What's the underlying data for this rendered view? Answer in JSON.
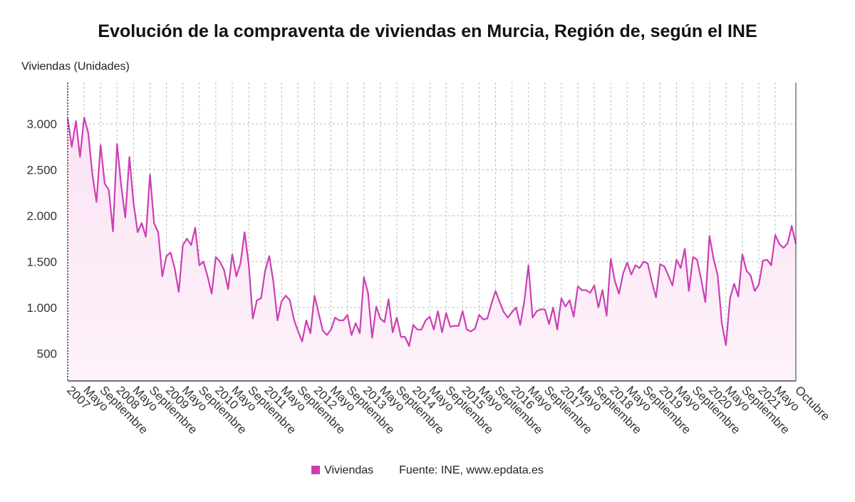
{
  "chart_data": {
    "type": "area",
    "title": "Evolución de la compraventa de viviendas en Murcia, Región de, según el INE",
    "ylabel": "Viviendas (Unidades)",
    "xlabel": "",
    "ylim": [
      200,
      3450
    ],
    "yticks": [
      500,
      1000,
      1500,
      2000,
      2500,
      3000
    ],
    "ytick_labels": [
      "500",
      "1.000",
      "1.500",
      "2.000",
      "2.500",
      "3.000"
    ],
    "grid": true,
    "legend_position": "bottom",
    "source": "Fuente: INE, www.epdata.es",
    "xtick_labels": [
      {
        "i": 0,
        "label": "2007"
      },
      {
        "i": 4,
        "label": "Mayo"
      },
      {
        "i": 8,
        "label": "Septiembre"
      },
      {
        "i": 12,
        "label": "2008"
      },
      {
        "i": 16,
        "label": "Mayo"
      },
      {
        "i": 20,
        "label": "Septiembre"
      },
      {
        "i": 24,
        "label": "2009"
      },
      {
        "i": 28,
        "label": "Mayo"
      },
      {
        "i": 32,
        "label": "Septiembre"
      },
      {
        "i": 36,
        "label": "2010"
      },
      {
        "i": 40,
        "label": "Mayo"
      },
      {
        "i": 44,
        "label": "Septiembre"
      },
      {
        "i": 48,
        "label": "2011"
      },
      {
        "i": 52,
        "label": "Mayo"
      },
      {
        "i": 56,
        "label": "Septiembre"
      },
      {
        "i": 60,
        "label": "2012"
      },
      {
        "i": 64,
        "label": "Mayo"
      },
      {
        "i": 68,
        "label": "Septiembre"
      },
      {
        "i": 72,
        "label": "2013"
      },
      {
        "i": 76,
        "label": "Mayo"
      },
      {
        "i": 80,
        "label": "Septiembre"
      },
      {
        "i": 84,
        "label": "2014"
      },
      {
        "i": 88,
        "label": "Mayo"
      },
      {
        "i": 92,
        "label": "Septiembre"
      },
      {
        "i": 96,
        "label": "2015"
      },
      {
        "i": 100,
        "label": "Mayo"
      },
      {
        "i": 104,
        "label": "Septiembre"
      },
      {
        "i": 108,
        "label": "2016"
      },
      {
        "i": 112,
        "label": "Mayo"
      },
      {
        "i": 116,
        "label": "Septiembre"
      },
      {
        "i": 120,
        "label": "2017"
      },
      {
        "i": 124,
        "label": "Mayo"
      },
      {
        "i": 128,
        "label": "Septiembre"
      },
      {
        "i": 132,
        "label": "2018"
      },
      {
        "i": 136,
        "label": "Mayo"
      },
      {
        "i": 140,
        "label": "Septiembre"
      },
      {
        "i": 144,
        "label": "2019"
      },
      {
        "i": 148,
        "label": "Mayo"
      },
      {
        "i": 152,
        "label": "Septiembre"
      },
      {
        "i": 156,
        "label": "2020"
      },
      {
        "i": 160,
        "label": "Mayo"
      },
      {
        "i": 164,
        "label": "Septiembre"
      },
      {
        "i": 168,
        "label": "2021"
      },
      {
        "i": 172,
        "label": "Mayo"
      },
      {
        "i": 177,
        "label": "Octubre"
      }
    ],
    "series": [
      {
        "name": "Viviendas",
        "color": "#cc3fb4",
        "values": [
          3060,
          2750,
          3030,
          2640,
          3070,
          2900,
          2450,
          2150,
          2770,
          2350,
          2280,
          1830,
          2780,
          2330,
          1980,
          2640,
          2140,
          1820,
          1920,
          1770,
          2450,
          1920,
          1820,
          1340,
          1560,
          1600,
          1430,
          1170,
          1680,
          1750,
          1680,
          1870,
          1460,
          1500,
          1340,
          1150,
          1550,
          1500,
          1410,
          1200,
          1580,
          1340,
          1480,
          1820,
          1470,
          880,
          1080,
          1100,
          1400,
          1560,
          1280,
          860,
          1070,
          1130,
          1080,
          870,
          740,
          630,
          860,
          720,
          1130,
          940,
          750,
          700,
          760,
          890,
          860,
          860,
          920,
          700,
          830,
          720,
          1330,
          1160,
          670,
          1010,
          880,
          840,
          1090,
          730,
          890,
          680,
          680,
          580,
          810,
          760,
          760,
          860,
          900,
          760,
          960,
          730,
          940,
          790,
          800,
          800,
          960,
          760,
          740,
          770,
          920,
          870,
          880,
          1040,
          1180,
          1060,
          950,
          890,
          950,
          1000,
          810,
          1070,
          1460,
          890,
          960,
          980,
          980,
          820,
          1000,
          760,
          1100,
          1010,
          1080,
          900,
          1230,
          1190,
          1190,
          1160,
          1240,
          1000,
          1190,
          910,
          1530,
          1290,
          1150,
          1370,
          1490,
          1360,
          1460,
          1430,
          1500,
          1480,
          1280,
          1110,
          1470,
          1450,
          1350,
          1240,
          1520,
          1430,
          1640,
          1180,
          1550,
          1520,
          1300,
          1060,
          1780,
          1530,
          1350,
          830,
          590,
          1100,
          1260,
          1120,
          1580,
          1400,
          1350,
          1180,
          1250,
          1510,
          1520,
          1460,
          1790,
          1690,
          1650,
          1700,
          1890,
          1690
        ]
      }
    ]
  }
}
